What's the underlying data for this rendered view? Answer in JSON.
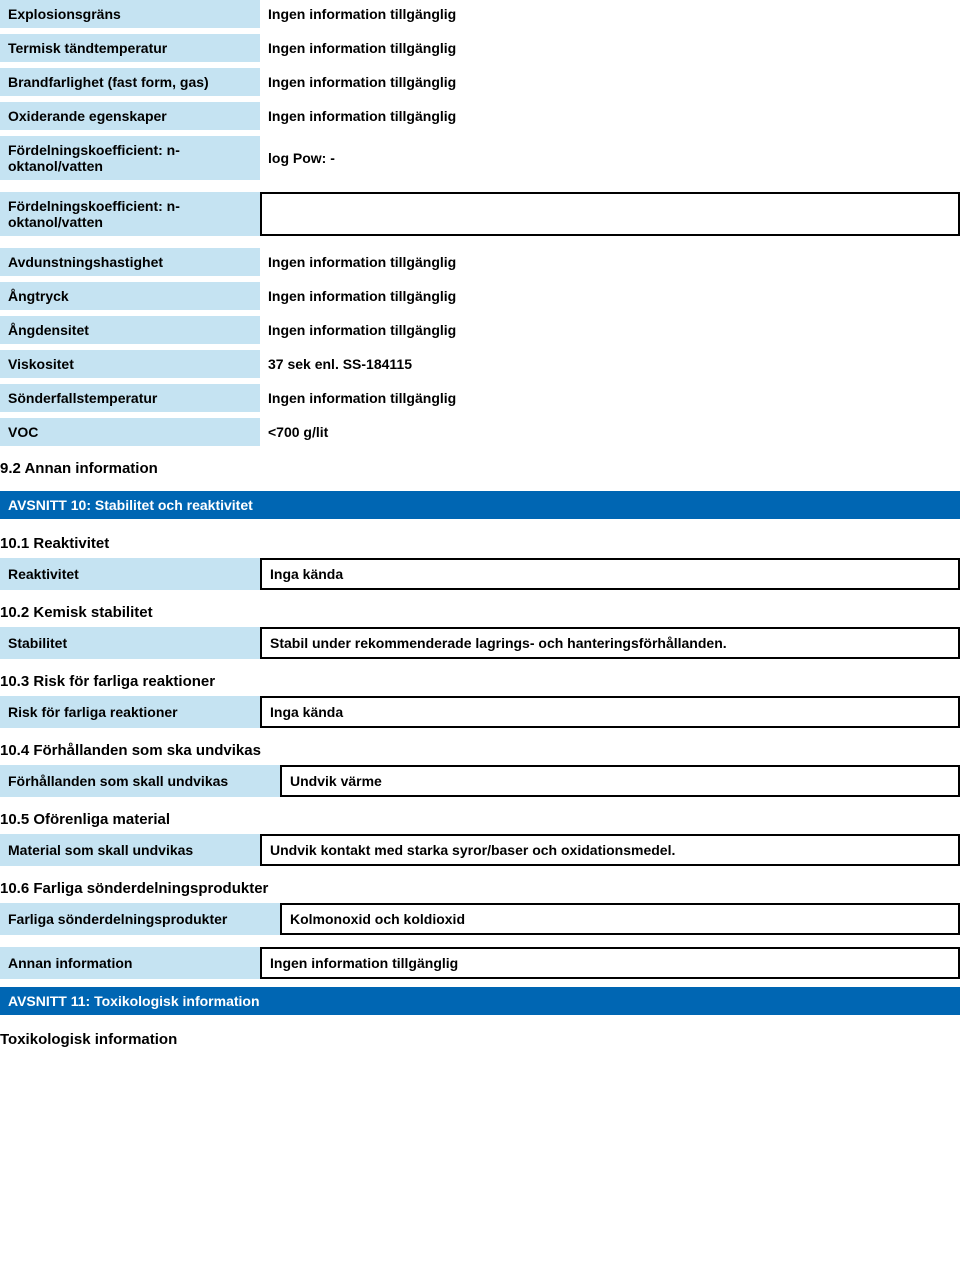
{
  "props1": [
    {
      "label": "Explosionsgräns",
      "value": "Ingen information tillgänglig"
    },
    {
      "label": "Termisk tändtemperatur",
      "value": "Ingen information tillgänglig"
    },
    {
      "label": "Brandfarlighet (fast form, gas)",
      "value": "Ingen information tillgänglig"
    },
    {
      "label": "Oxiderande egenskaper",
      "value": "Ingen information tillgänglig"
    },
    {
      "label": "Fördelningskoefficient: n-oktanol/vatten",
      "value": "log Pow:    -"
    }
  ],
  "props2": [
    {
      "label": "Fördelningskoefficient: n-oktanol/vatten",
      "value": "",
      "boxed": true
    }
  ],
  "props3": [
    {
      "label": "Avdunstningshastighet",
      "value": "Ingen information tillgänglig"
    },
    {
      "label": "Ångtryck",
      "value": "Ingen information tillgänglig"
    },
    {
      "label": "Ångdensitet",
      "value": "Ingen information tillgänglig"
    },
    {
      "label": "Viskositet",
      "value": "37 sek enl. SS-184115"
    },
    {
      "label": "Sönderfallstemperatur",
      "value": "Ingen information tillgänglig"
    },
    {
      "label": "VOC",
      "value": "<700 g/lit"
    }
  ],
  "sub92": "9.2 Annan information",
  "section10": "AVSNITT 10: Stabilitet och reaktivitet",
  "s10": {
    "sub1": "10.1 Reaktivitet",
    "r1": {
      "label": "Reaktivitet",
      "value": "Inga kända"
    },
    "sub2": "10.2 Kemisk stabilitet",
    "r2": {
      "label": "Stabilitet",
      "value": "Stabil under rekommenderade lagrings- och hanteringsförhållanden."
    },
    "sub3": "10.3 Risk för farliga reaktioner",
    "r3": {
      "label": "Risk för farliga reaktioner",
      "value": "Inga kända"
    },
    "sub4": "10.4 Förhållanden som ska undvikas",
    "r4": {
      "label": "Förhållanden som skall undvikas",
      "value": "Undvik värme"
    },
    "sub5": "10.5 Oförenliga material",
    "r5": {
      "label": "Material som skall undvikas",
      "value": "Undvik kontakt med starka syror/baser och oxidationsmedel."
    },
    "sub6": "10.6 Farliga sönderdelningsprodukter",
    "r6": {
      "label": "Farliga sönderdelningsprodukter",
      "value": "Kolmonoxid och koldioxid"
    },
    "r7": {
      "label": "Annan information",
      "value": "Ingen information tillgänglig"
    }
  },
  "section11": "AVSNITT 11: Toxikologisk information",
  "sub11a": "Toxikologisk information"
}
